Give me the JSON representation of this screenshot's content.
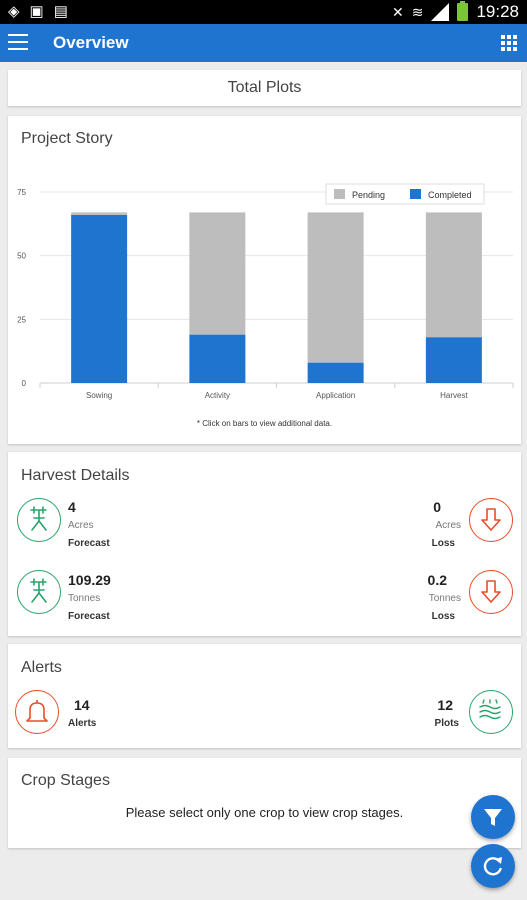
{
  "status_bar": {
    "time": "19:28",
    "left_icons": [
      "location-icon",
      "image-icon",
      "document-icon"
    ],
    "right_icons": [
      "mute-icon",
      "wifi-icon",
      "signal-icon",
      "battery-icon"
    ]
  },
  "app_bar": {
    "title": "Overview"
  },
  "total_plots": {
    "title": "Total Plots"
  },
  "project_story": {
    "title": "Project Story",
    "note": "* Click on bars to view additional data.",
    "chart_data": {
      "type": "bar",
      "stacked": true,
      "categories": [
        "Sowing",
        "Activity",
        "Application",
        "Harvest"
      ],
      "series": [
        {
          "name": "Completed",
          "values": [
            66,
            19,
            8,
            18
          ],
          "color": "#1e74cf"
        },
        {
          "name": "Pending",
          "values": [
            1,
            48,
            59,
            49
          ],
          "color": "#bdbdbd"
        }
      ],
      "yticks": [
        0,
        25,
        50,
        75
      ],
      "ylim": [
        0,
        75
      ],
      "legend": "top-right",
      "grid": true
    }
  },
  "harvest_details": {
    "title": "Harvest Details",
    "items": [
      {
        "value": "4",
        "unit": "Acres",
        "caption": "Forecast",
        "icon": "harvester-icon"
      },
      {
        "value": "0",
        "unit": "Acres",
        "caption": "Loss",
        "icon": "down-arrow-icon"
      },
      {
        "value": "109.29",
        "unit": "Tonnes",
        "caption": "Forecast",
        "icon": "harvester-icon"
      },
      {
        "value": "0.2",
        "unit": "Tonnes",
        "caption": "Loss",
        "icon": "down-arrow-icon"
      }
    ]
  },
  "alerts": {
    "title": "Alerts",
    "alerts_count": "14",
    "alerts_label": "Alerts",
    "plots_count": "12",
    "plots_label": "Plots"
  },
  "crop_stages": {
    "title": "Crop Stages",
    "message": "Please select only one crop to view crop stages."
  },
  "fabs": {
    "filter_icon": "filter-icon",
    "refresh_icon": "refresh-icon"
  },
  "colors": {
    "primary": "#1e74cf",
    "pending": "#bdbdbd",
    "green": "#2aa36a",
    "red": "#e84d2a"
  }
}
